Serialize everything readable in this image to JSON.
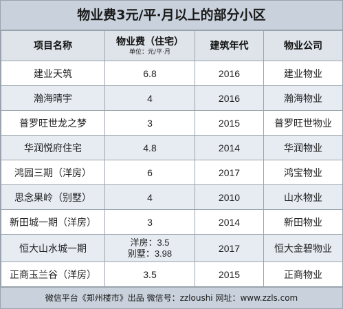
{
  "title": "物业费3元/平·月以上的部分小区",
  "headers": {
    "project": "项目名称",
    "fee": "物业费（住宅）",
    "fee_unit": "单位：元/平·月",
    "year": "建筑年代",
    "company": "物业公司"
  },
  "rows": [
    {
      "name": "建业天筑",
      "fee": [
        "6.8"
      ],
      "year": "2016",
      "company": "建业物业"
    },
    {
      "name": "瀚海晴宇",
      "fee": [
        "4"
      ],
      "year": "2016",
      "company": "瀚海物业"
    },
    {
      "name": "普罗旺世龙之梦",
      "fee": [
        "3"
      ],
      "year": "2015",
      "company": "普罗旺世物业"
    },
    {
      "name": "华润悦府住宅",
      "fee": [
        "4.8"
      ],
      "year": "2014",
      "company": "华润物业"
    },
    {
      "name": "鸿园三期（洋房）",
      "fee": [
        "6"
      ],
      "year": "2017",
      "company": "鸿宝物业"
    },
    {
      "name": "思念果岭（别墅）",
      "fee": [
        "4"
      ],
      "year": "2010",
      "company": "山水物业"
    },
    {
      "name": "新田城一期（洋房）",
      "fee": [
        "3"
      ],
      "year": "2014",
      "company": "新田物业"
    },
    {
      "name": "恒大山水城一期",
      "fee": [
        "洋房：3.5",
        "别墅：3.98"
      ],
      "year": "2017",
      "company": "恒大金碧物业"
    },
    {
      "name": "正商玉兰谷（洋房）",
      "fee": [
        "3.5"
      ],
      "year": "2015",
      "company": "正商物业"
    }
  ],
  "footer": "微信平台《郑州楼市》出品   微信号：zzloushi  网址：www.zzls.com"
}
